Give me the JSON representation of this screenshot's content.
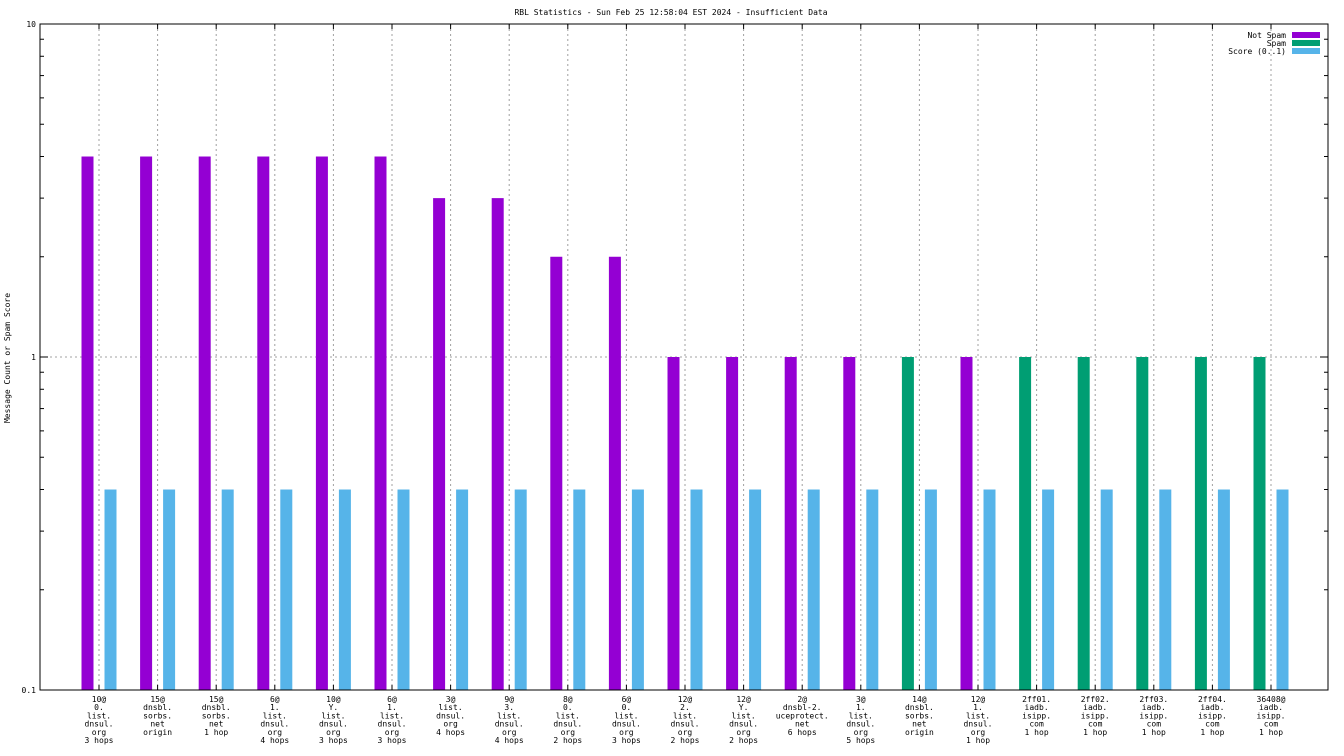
{
  "chart_data": {
    "type": "bar",
    "title": "RBL Statistics - Sun Feb 25 12:58:04 EST 2024 - Insufficient Data",
    "xlabel": "",
    "ylabel": "Message Count or Spam Score",
    "yscale": "log",
    "ylim": [
      0.1,
      10
    ],
    "yticks": [
      {
        "value": 10,
        "label": "10"
      },
      {
        "value": 1,
        "label": "1"
      },
      {
        "value": 0.1,
        "label": "0.1"
      }
    ],
    "grid": true,
    "legend_position": "top-right",
    "categories": [
      [
        "10@",
        "0.",
        "list.",
        "dnsul.",
        "org",
        "3 hops"
      ],
      [
        "15@",
        "dnsbl.",
        "sorbs.",
        "net",
        "origin"
      ],
      [
        "15@",
        "dnsbl.",
        "sorbs.",
        "net",
        "1 hop"
      ],
      [
        "6@",
        "1.",
        "list.",
        "dnsul.",
        "org",
        "4 hops"
      ],
      [
        "10@",
        "Y.",
        "list.",
        "dnsul.",
        "org",
        "3 hops"
      ],
      [
        "6@",
        "1.",
        "list.",
        "dnsul.",
        "org",
        "3 hops"
      ],
      [
        "3@",
        "list.",
        "dnsul.",
        "org",
        "4 hops"
      ],
      [
        "9@",
        "3.",
        "list.",
        "dnsul.",
        "org",
        "4 hops"
      ],
      [
        "8@",
        "0.",
        "list.",
        "dnsul.",
        "org",
        "2 hops"
      ],
      [
        "6@",
        "0.",
        "list.",
        "dnsul.",
        "org",
        "3 hops"
      ],
      [
        "12@",
        "2.",
        "list.",
        "dnsul.",
        "org",
        "2 hops"
      ],
      [
        "12@",
        "Y.",
        "list.",
        "dnsul.",
        "org",
        "2 hops"
      ],
      [
        "2@",
        "dnsbl-2.",
        "uceprotect.",
        "net",
        "6 hops"
      ],
      [
        "3@",
        "1.",
        "list.",
        "dnsul.",
        "org",
        "5 hops"
      ],
      [
        "14@",
        "dnsbl.",
        "sorbs.",
        "net",
        "origin"
      ],
      [
        "12@",
        "1.",
        "list.",
        "dnsul.",
        "org",
        "1 hop"
      ],
      [
        "2ff01.",
        "iadb.",
        "isipp.",
        "com",
        "1 hop"
      ],
      [
        "2ff02.",
        "iadb.",
        "isipp.",
        "com",
        "1 hop"
      ],
      [
        "2ff03.",
        "iadb.",
        "isipp.",
        "com",
        "1 hop"
      ],
      [
        "2ff04.",
        "iadb.",
        "isipp.",
        "com",
        "1 hop"
      ],
      [
        "36408@",
        "iadb.",
        "isipp.",
        "com",
        "1 hop"
      ]
    ],
    "series": [
      {
        "name": "Not Spam",
        "color": "#9400d3",
        "values": [
          4,
          4,
          4,
          4,
          4,
          4,
          3,
          3,
          2,
          2,
          1,
          1,
          1,
          1,
          0,
          1,
          0,
          0,
          0,
          0,
          0
        ]
      },
      {
        "name": "Spam",
        "color": "#009e73",
        "values": [
          0,
          0,
          0,
          0,
          0,
          0,
          0,
          0,
          0,
          0,
          0,
          0,
          0,
          0,
          1,
          0,
          1,
          1,
          1,
          1,
          1
        ]
      },
      {
        "name": "Score (0..1)",
        "color": "#56b4e9",
        "values": [
          0.4,
          0.4,
          0.4,
          0.4,
          0.4,
          0.4,
          0.4,
          0.4,
          0.4,
          0.4,
          0.4,
          0.4,
          0.4,
          0.4,
          0.4,
          0.4,
          0.4,
          0.4,
          0.4,
          0.4,
          0.4
        ]
      }
    ]
  }
}
